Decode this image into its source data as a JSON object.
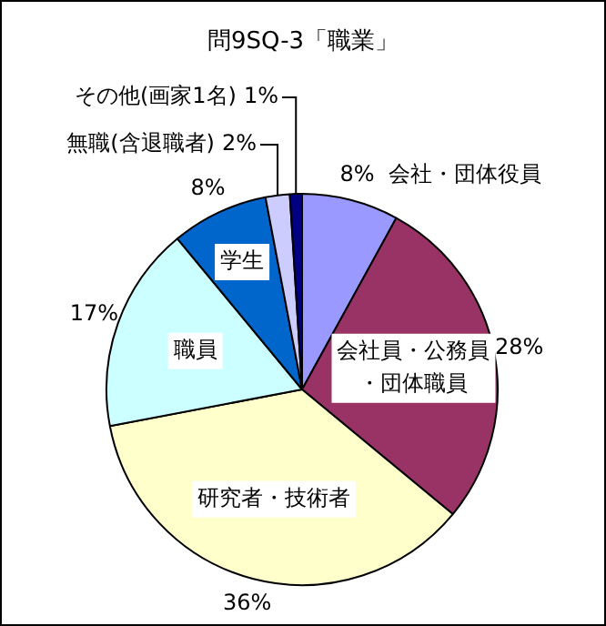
{
  "chart_data": {
    "type": "pie",
    "title": "問9SQ-3「職業」",
    "categories": [
      "会社・団体役員",
      "会社員・公務員・団体職員",
      "研究者・技術者",
      "職員",
      "学生",
      "無職(含退職者)",
      "その他(画家1名)"
    ],
    "values": [
      8,
      28,
      36,
      17,
      8,
      2,
      1
    ],
    "colors": [
      "#9999ff",
      "#993366",
      "#ffffcc",
      "#ccffff",
      "#0066cc",
      "#ccccff",
      "#000080"
    ],
    "value_labels": [
      "8%",
      "28%",
      "36%",
      "17%",
      "8%",
      "2%",
      "1%"
    ],
    "legend": false
  }
}
